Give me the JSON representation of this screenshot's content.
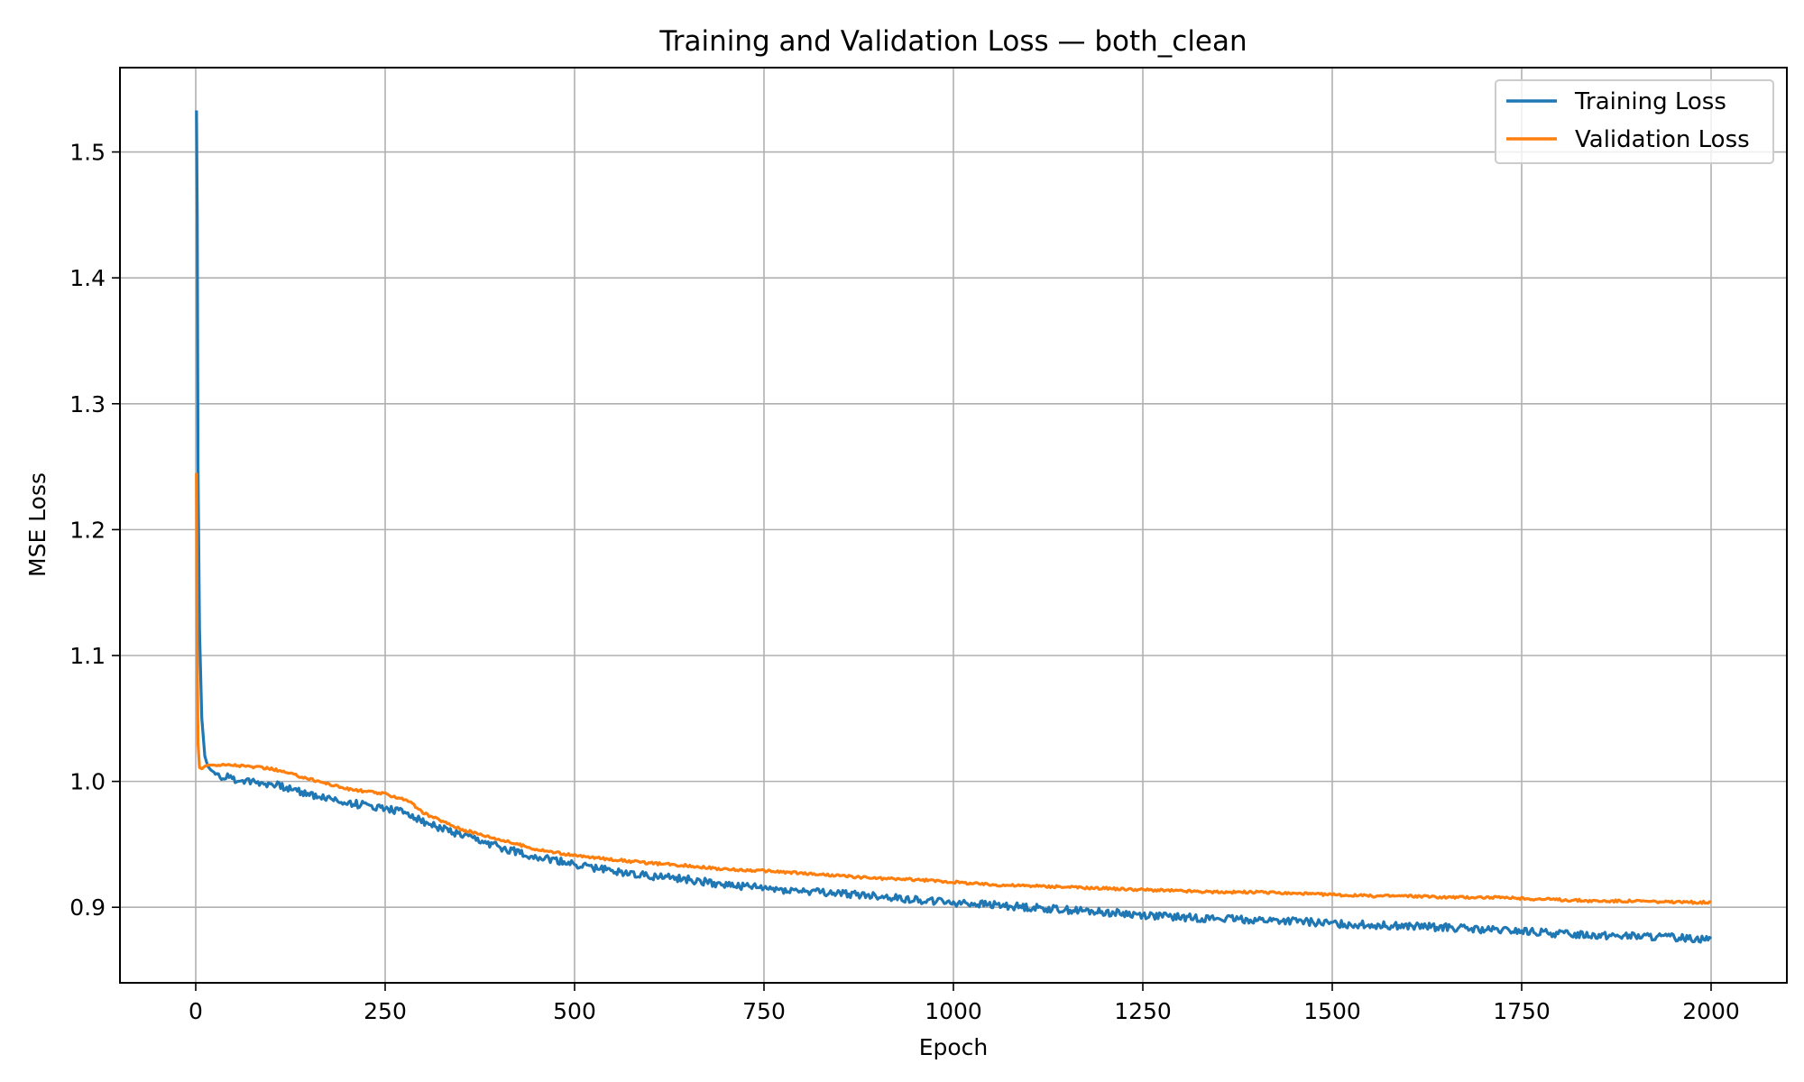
{
  "chart_data": {
    "type": "line",
    "title": "Training and Validation Loss — both_clean",
    "xlabel": "Epoch",
    "ylabel": "MSE Loss",
    "xlim": [
      -100,
      2100
    ],
    "ylim": [
      0.84,
      1.567
    ],
    "xticks": [
      0,
      250,
      500,
      750,
      1000,
      1250,
      1500,
      1750,
      2000
    ],
    "xtick_labels": [
      "0",
      "250",
      "500",
      "750",
      "1000",
      "1250",
      "1500",
      "1750",
      "2000"
    ],
    "yticks": [
      0.9,
      1.0,
      1.1,
      1.2,
      1.3,
      1.4,
      1.5
    ],
    "ytick_labels": [
      "0.9",
      "1.0",
      "1.1",
      "1.2",
      "1.3",
      "1.4",
      "1.5"
    ],
    "grid": true,
    "legend": "top-right",
    "series": [
      {
        "name": "Training Loss",
        "color": "#1f77b4",
        "x": [
          1,
          2,
          3,
          5,
          8,
          12,
          16,
          20,
          30,
          50,
          100,
          150,
          200,
          250,
          280,
          300,
          350,
          400,
          450,
          500,
          550,
          600,
          650,
          700,
          750,
          800,
          850,
          900,
          950,
          1000,
          1050,
          1100,
          1150,
          1200,
          1250,
          1300,
          1350,
          1400,
          1450,
          1500,
          1550,
          1600,
          1650,
          1700,
          1750,
          1800,
          1850,
          1900,
          1950,
          2000
        ],
        "y": [
          1.533,
          1.45,
          1.25,
          1.12,
          1.05,
          1.02,
          1.012,
          1.009,
          1.005,
          1.002,
          0.998,
          0.99,
          0.983,
          0.979,
          0.975,
          0.968,
          0.957,
          0.948,
          0.94,
          0.934,
          0.929,
          0.925,
          0.922,
          0.918,
          0.915,
          0.913,
          0.911,
          0.909,
          0.906,
          0.904,
          0.902,
          0.9,
          0.898,
          0.896,
          0.894,
          0.892,
          0.891,
          0.89,
          0.889,
          0.887,
          0.886,
          0.885,
          0.884,
          0.882,
          0.881,
          0.879,
          0.878,
          0.877,
          0.876,
          0.875
        ]
      },
      {
        "name": "Validation Loss",
        "color": "#ff7f0e",
        "x": [
          1,
          2,
          3,
          5,
          8,
          12,
          16,
          20,
          30,
          50,
          100,
          150,
          200,
          250,
          280,
          300,
          350,
          400,
          450,
          500,
          550,
          600,
          650,
          700,
          750,
          800,
          850,
          900,
          950,
          1000,
          1050,
          1100,
          1150,
          1200,
          1250,
          1300,
          1350,
          1400,
          1450,
          1500,
          1550,
          1600,
          1650,
          1700,
          1750,
          1800,
          1850,
          1900,
          1950,
          2000
        ],
        "y": [
          1.245,
          1.1,
          1.03,
          1.011,
          1.01,
          1.012,
          1.013,
          1.013,
          1.013,
          1.013,
          1.01,
          1.002,
          0.994,
          0.99,
          0.985,
          0.975,
          0.962,
          0.954,
          0.946,
          0.941,
          0.938,
          0.935,
          0.933,
          0.93,
          0.929,
          0.927,
          0.925,
          0.923,
          0.922,
          0.92,
          0.918,
          0.917,
          0.916,
          0.915,
          0.914,
          0.913,
          0.912,
          0.912,
          0.911,
          0.91,
          0.909,
          0.909,
          0.908,
          0.908,
          0.907,
          0.906,
          0.905,
          0.905,
          0.904,
          0.904
        ]
      }
    ]
  }
}
